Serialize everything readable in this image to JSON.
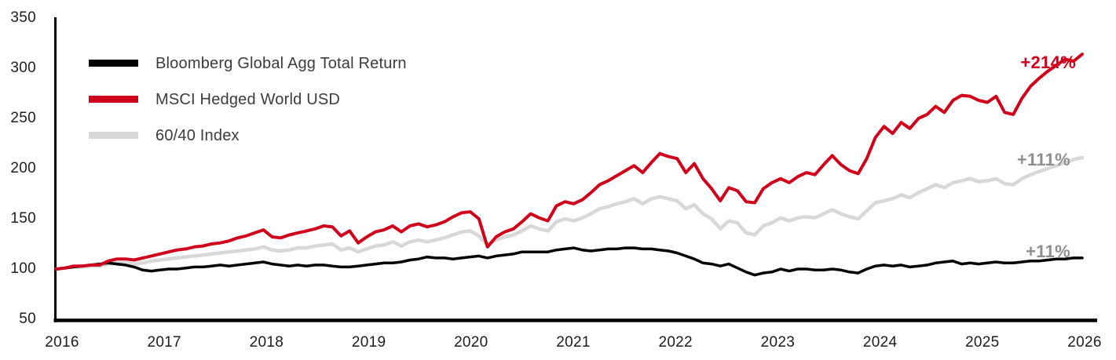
{
  "chart_data": {
    "type": "line",
    "title": "",
    "xlabel": "",
    "ylabel": "",
    "ylim": [
      50,
      350
    ],
    "grid": false,
    "legend_position": "top-left",
    "x_tick_labels": [
      "2016",
      "2017",
      "2018",
      "2019",
      "2020",
      "2021",
      "2022",
      "2023",
      "2024",
      "2025",
      "2026"
    ],
    "y_tick_labels": [
      "350",
      "300",
      "250",
      "200",
      "150",
      "100",
      "50"
    ],
    "x_unit": "monthly, Jan 2016 - Dec 2025, indexed to 100",
    "series": [
      {
        "name": "Bloomberg Global Agg Total Return",
        "color": "#000000",
        "end_label": "+11%",
        "end_value": 111,
        "values": [
          100,
          101,
          102,
          103,
          104,
          105,
          106,
          105,
          104,
          102,
          99,
          98,
          99,
          100,
          100,
          101,
          102,
          102,
          103,
          104,
          103,
          104,
          105,
          106,
          107,
          105,
          104,
          103,
          104,
          103,
          104,
          104,
          103,
          102,
          102,
          103,
          104,
          105,
          106,
          106,
          107,
          109,
          110,
          112,
          111,
          111,
          110,
          111,
          112,
          113,
          111,
          113,
          114,
          115,
          117,
          117,
          117,
          117,
          119,
          120,
          121,
          119,
          118,
          119,
          120,
          120,
          121,
          121,
          120,
          120,
          119,
          118,
          116,
          113,
          110,
          106,
          105,
          103,
          105,
          101,
          97,
          94,
          96,
          97,
          100,
          98,
          100,
          100,
          99,
          99,
          100,
          99,
          97,
          96,
          100,
          103,
          104,
          103,
          104,
          102,
          103,
          104,
          106,
          107,
          108,
          105,
          106,
          105,
          106,
          107,
          106,
          106,
          107,
          108,
          108,
          109,
          110,
          110,
          111,
          111
        ]
      },
      {
        "name": "MSCI Hedged World USD",
        "color": "#d0021b",
        "end_label": "+214%",
        "end_value": 314,
        "values": [
          100,
          101,
          103,
          103,
          104,
          104,
          108,
          110,
          110,
          109,
          111,
          113,
          115,
          117,
          119,
          120,
          122,
          123,
          125,
          126,
          128,
          131,
          133,
          136,
          139,
          132,
          131,
          134,
          136,
          138,
          140,
          143,
          142,
          133,
          138,
          126,
          132,
          137,
          139,
          143,
          137,
          143,
          145,
          142,
          144,
          147,
          152,
          156,
          157,
          150,
          122,
          132,
          137,
          140,
          147,
          155,
          151,
          148,
          163,
          167,
          165,
          169,
          176,
          184,
          188,
          193,
          198,
          203,
          196,
          206,
          215,
          212,
          210,
          196,
          205,
          190,
          180,
          168,
          181,
          178,
          167,
          166,
          180,
          186,
          190,
          186,
          192,
          196,
          194,
          204,
          213,
          204,
          198,
          195,
          210,
          231,
          242,
          235,
          246,
          240,
          250,
          254,
          262,
          256,
          268,
          273,
          272,
          268,
          266,
          272,
          256,
          254,
          270,
          282,
          290,
          297,
          303,
          309,
          307,
          314
        ]
      },
      {
        "name": "60/40 Index",
        "color": "#d8d8d8",
        "end_label": "+111%",
        "end_value": 211,
        "values": [
          100,
          101,
          102,
          102,
          103,
          103,
          105,
          106,
          106,
          105,
          106,
          108,
          109,
          110,
          111,
          112,
          113,
          114,
          115,
          116,
          117,
          118,
          119,
          120,
          122,
          119,
          118,
          119,
          121,
          121,
          123,
          124,
          125,
          119,
          121,
          117,
          120,
          123,
          124,
          127,
          123,
          127,
          129,
          127,
          129,
          131,
          134,
          137,
          138,
          133,
          124,
          129,
          132,
          134,
          138,
          143,
          140,
          138,
          147,
          150,
          148,
          151,
          155,
          160,
          162,
          165,
          167,
          170,
          165,
          170,
          172,
          170,
          168,
          160,
          164,
          155,
          150,
          140,
          148,
          146,
          136,
          134,
          143,
          146,
          151,
          148,
          151,
          152,
          151,
          155,
          159,
          155,
          152,
          150,
          158,
          166,
          168,
          170,
          174,
          171,
          176,
          180,
          184,
          181,
          186,
          188,
          190,
          187,
          188,
          190,
          185,
          184,
          190,
          194,
          197,
          200,
          203,
          206,
          209,
          211
        ]
      }
    ]
  },
  "legend": {
    "items": [
      {
        "label": "Bloomberg Global Agg Total Return",
        "color": "#000000"
      },
      {
        "label": "MSCI Hedged World USD",
        "color": "#d0021b"
      },
      {
        "label": "60/40 Index",
        "color": "#d8d8d8"
      }
    ]
  },
  "annotations": {
    "msci": {
      "text": "+214%",
      "color": "#d0021b"
    },
    "s6040": {
      "text": "+111%",
      "color": "#8f8f8f"
    },
    "agg": {
      "text": "+11%",
      "color": "#8f8f8f"
    }
  },
  "axis_color": "#000000"
}
